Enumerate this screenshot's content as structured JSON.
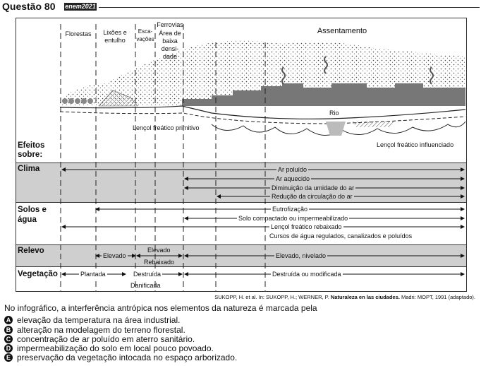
{
  "header": {
    "title": "Questão 80",
    "badge": "enem2021"
  },
  "figure": {
    "zones": {
      "florestas": "Florestas",
      "lixoes": "Lixões e entulho",
      "escavacoes": "Esca-vações",
      "ferrovias": "Ferrovias",
      "baixa": "Área de baixa densi-dade",
      "assentamento": "Assentamento"
    },
    "labels": {
      "rio": "Rio",
      "lencol_primitivo": "Lençol freático primitivo",
      "lencol_influenciado": "Lençol freático influenciado"
    },
    "rows": {
      "efeitos": "Efeitos sobre:",
      "clima": "Clima",
      "solos": "Solos e água",
      "relevo": "Relevo",
      "vegetacao": "Vegetação"
    },
    "clima": [
      "Ar poluído",
      "Ar aquecido",
      "Diminuição da umidade do ar",
      "Redução da circulação do ar"
    ],
    "solos": [
      "Eutrofização",
      "Solo compactado ou impermeabilizado",
      "Lençol freático rebaixado",
      "Cursos de água regulados, canalizados e poluídos"
    ],
    "relevo": {
      "elevado1": "Elevado",
      "elevado2": "Elevado",
      "rebaixado": "Rebaixado",
      "nivelado": "Elevado, nivelado"
    },
    "vegetacao": {
      "plantada": "Plantada",
      "destruida": "Destruída",
      "danificada": "Danificada",
      "modificada": "Destruída ou modificada"
    }
  },
  "citation": {
    "authors": "SUKOPP, H. et al. In: SUKOPP, H.; WERNER, P. ",
    "title": "Naturaleza en las ciudades.",
    "rest": " Madri: MOPT, 1991 (adaptado)."
  },
  "question": {
    "stem": "No infográfico, a interferência antrópica nos elementos da natureza é marcada pela",
    "options": [
      {
        "letter": "A",
        "text": "elevação da temperatura na área industrial."
      },
      {
        "letter": "B",
        "text": "alteração na modelagem do terreno florestal."
      },
      {
        "letter": "C",
        "text": "concentração de ar poluído em aterro sanitário."
      },
      {
        "letter": "D",
        "text": "impermeabilização do solo em local pouco povoado."
      },
      {
        "letter": "E",
        "text": "preservação da vegetação intocada no espaço arborizado."
      }
    ]
  }
}
